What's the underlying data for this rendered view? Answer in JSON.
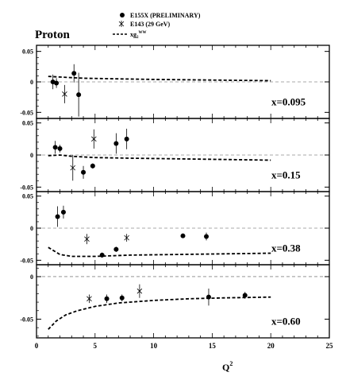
{
  "figure": {
    "label": "Proton",
    "xlabel": "Q",
    "xlabel_sup": "2",
    "x_ticks": [
      "0",
      "5",
      "10",
      "15",
      "20",
      "25"
    ],
    "legend": {
      "e155x": "E155X (PRELIMINARY)",
      "e143": "E143 (29 GeV)",
      "theory": "xg",
      "theory_sub": "2",
      "theory_sup": "WW"
    }
  },
  "chart_data": [
    {
      "type": "scatter",
      "panel": "x=0.095",
      "label": "x=0.095",
      "xlim": [
        0,
        25
      ],
      "ylim": [
        -0.06,
        0.06
      ],
      "y_ticks": [
        {
          "v": 0.05,
          "t": "0.05"
        },
        {
          "v": 0,
          "t": "0"
        },
        {
          "v": -0.05,
          "t": "-0.05"
        }
      ],
      "series": [
        {
          "name": "E155X (PRELIMINARY)",
          "marker": "filled-circle",
          "points": [
            {
              "x": 1.4,
              "y": 0.0,
              "err": 0.012
            },
            {
              "x": 1.7,
              "y": -0.002,
              "err": 0.008
            },
            {
              "x": 3.2,
              "y": 0.014,
              "err": 0.015
            },
            {
              "x": 3.6,
              "y": -0.021,
              "err": 0.036
            }
          ]
        },
        {
          "name": "E143 (29 GeV)",
          "marker": "star",
          "points": [
            {
              "x": 2.4,
              "y": -0.02,
              "err": 0.015
            }
          ]
        },
        {
          "name": "xg2WW",
          "marker": "dashed-line",
          "points": [
            {
              "x": 1.0,
              "y": 0.009
            },
            {
              "x": 2,
              "y": 0.008
            },
            {
              "x": 4,
              "y": 0.006
            },
            {
              "x": 7,
              "y": 0.005
            },
            {
              "x": 10,
              "y": 0.004
            },
            {
              "x": 15,
              "y": 0.003
            },
            {
              "x": 20,
              "y": 0.002
            }
          ]
        }
      ]
    },
    {
      "type": "scatter",
      "panel": "x=0.15",
      "label": "x=0.15",
      "xlim": [
        0,
        25
      ],
      "ylim": [
        -0.057,
        0.057
      ],
      "y_ticks": [
        {
          "v": 0.05,
          "t": "0.05"
        },
        {
          "v": 0,
          "t": "0"
        },
        {
          "v": -0.05,
          "t": "-0.05"
        }
      ],
      "series": [
        {
          "name": "E155X (PRELIMINARY)",
          "marker": "filled-circle",
          "points": [
            {
              "x": 1.6,
              "y": 0.012,
              "err": 0.01
            },
            {
              "x": 2.0,
              "y": 0.01,
              "err": 0.006
            },
            {
              "x": 4.0,
              "y": -0.027,
              "err": 0.01
            },
            {
              "x": 4.8,
              "y": -0.017,
              "err": 0.004
            },
            {
              "x": 6.8,
              "y": 0.018,
              "err": 0.016
            },
            {
              "x": 7.7,
              "y": 0.025,
              "err": 0.016
            }
          ]
        },
        {
          "name": "E143 (29 GeV)",
          "marker": "star",
          "points": [
            {
              "x": 3.1,
              "y": -0.02,
              "err": 0.02
            },
            {
              "x": 4.9,
              "y": 0.025,
              "err": 0.015
            }
          ]
        },
        {
          "name": "xg2WW",
          "marker": "dashed-line",
          "points": [
            {
              "x": 1.0,
              "y": -0.001
            },
            {
              "x": 2,
              "y": 0.0
            },
            {
              "x": 3,
              "y": -0.002
            },
            {
              "x": 5,
              "y": -0.004
            },
            {
              "x": 8,
              "y": -0.005
            },
            {
              "x": 12,
              "y": -0.006
            },
            {
              "x": 16,
              "y": -0.007
            },
            {
              "x": 20,
              "y": -0.008
            }
          ]
        }
      ]
    },
    {
      "type": "scatter",
      "panel": "x=0.38",
      "label": "x=0.38",
      "xlim": [
        0,
        25
      ],
      "ylim": [
        -0.057,
        0.057
      ],
      "y_ticks": [
        {
          "v": 0.05,
          "t": "0.05"
        },
        {
          "v": 0,
          "t": "0"
        },
        {
          "v": -0.05,
          "t": "-0.05"
        }
      ],
      "series": [
        {
          "name": "E155X (PRELIMINARY)",
          "marker": "filled-circle",
          "points": [
            {
              "x": 1.8,
              "y": 0.018,
              "err": 0.016
            },
            {
              "x": 2.3,
              "y": 0.025,
              "err": 0.01
            },
            {
              "x": 5.6,
              "y": -0.042,
              "err": 0.004
            },
            {
              "x": 6.8,
              "y": -0.033,
              "err": 0.004
            },
            {
              "x": 12.5,
              "y": -0.012,
              "err": 0.003
            },
            {
              "x": 14.5,
              "y": -0.013,
              "err": 0.006
            }
          ]
        },
        {
          "name": "E143 (29 GeV)",
          "marker": "star",
          "points": [
            {
              "x": 4.3,
              "y": -0.017,
              "err": 0.008
            },
            {
              "x": 7.7,
              "y": -0.015,
              "err": 0.006
            }
          ]
        },
        {
          "name": "xg2WW",
          "marker": "dashed-line",
          "points": [
            {
              "x": 1.0,
              "y": -0.03
            },
            {
              "x": 2,
              "y": -0.041
            },
            {
              "x": 3,
              "y": -0.044
            },
            {
              "x": 5,
              "y": -0.044
            },
            {
              "x": 8,
              "y": -0.042
            },
            {
              "x": 12,
              "y": -0.041
            },
            {
              "x": 16,
              "y": -0.04
            },
            {
              "x": 20,
              "y": -0.039
            }
          ]
        }
      ]
    },
    {
      "type": "scatter",
      "panel": "x=0.60",
      "label": "x=0.60",
      "xlim": [
        0,
        25
      ],
      "ylim": [
        -0.072,
        0.014
      ],
      "y_ticks": [
        {
          "v": 0,
          "t": "0"
        },
        {
          "v": -0.05,
          "t": "-0.05"
        }
      ],
      "series": [
        {
          "name": "E155X (PRELIMINARY)",
          "marker": "filled-circle",
          "points": [
            {
              "x": 6.0,
              "y": -0.026,
              "err": 0.005
            },
            {
              "x": 7.3,
              "y": -0.025,
              "err": 0.004
            },
            {
              "x": 14.7,
              "y": -0.024,
              "err": 0.01
            },
            {
              "x": 17.8,
              "y": -0.022,
              "err": 0.004
            }
          ]
        },
        {
          "name": "E143 (29 GeV)",
          "marker": "star",
          "points": [
            {
              "x": 4.5,
              "y": -0.026,
              "err": 0.005
            },
            {
              "x": 8.8,
              "y": -0.017,
              "err": 0.008
            }
          ]
        },
        {
          "name": "xg2WW",
          "marker": "dashed-line",
          "points": [
            {
              "x": 1.0,
              "y": -0.062
            },
            {
              "x": 1.7,
              "y": -0.052
            },
            {
              "x": 2.5,
              "y": -0.045
            },
            {
              "x": 3.5,
              "y": -0.04
            },
            {
              "x": 5,
              "y": -0.035
            },
            {
              "x": 7,
              "y": -0.031
            },
            {
              "x": 10,
              "y": -0.028
            },
            {
              "x": 13,
              "y": -0.026
            },
            {
              "x": 16,
              "y": -0.025
            },
            {
              "x": 20,
              "y": -0.024
            }
          ]
        }
      ]
    }
  ]
}
